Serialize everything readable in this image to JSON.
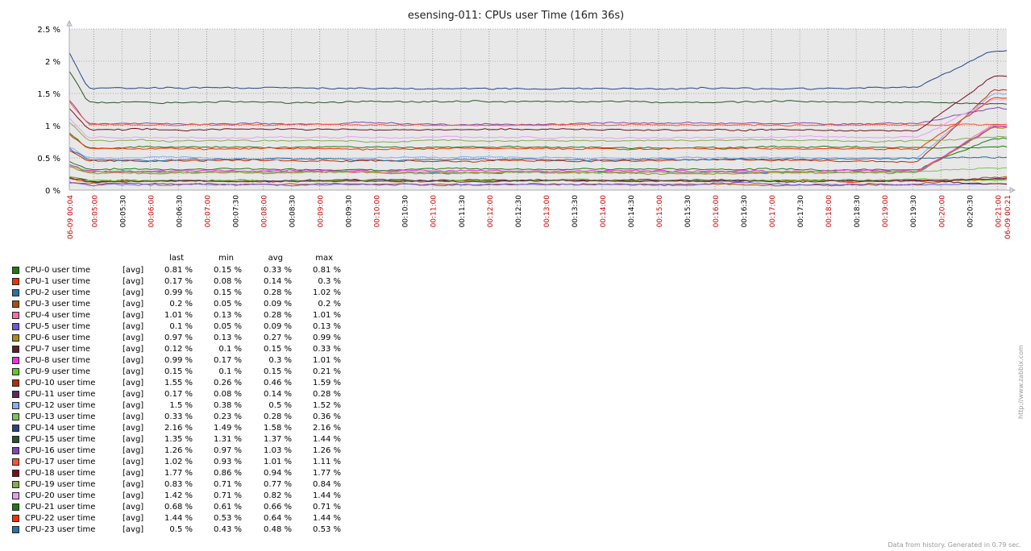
{
  "chart_data": {
    "type": "line",
    "title": "esensing-011: CPUs user Time (16m 36s)",
    "y_unit": "%",
    "ylim": [
      0,
      2.5
    ],
    "y_ticks": [
      "0 %",
      "0.5 %",
      "1 %",
      "1.5 %",
      "2 %",
      "2.5 %"
    ],
    "x_ticks": [
      {
        "label": "06-09 00:04",
        "major": true
      },
      {
        "label": "00:05:00",
        "major": true
      },
      {
        "label": "00:05:30",
        "major": false
      },
      {
        "label": "00:06:00",
        "major": true
      },
      {
        "label": "00:06:30",
        "major": false
      },
      {
        "label": "00:07:00",
        "major": true
      },
      {
        "label": "00:07:30",
        "major": false
      },
      {
        "label": "00:08:00",
        "major": true
      },
      {
        "label": "00:08:30",
        "major": false
      },
      {
        "label": "00:09:00",
        "major": true
      },
      {
        "label": "00:09:30",
        "major": false
      },
      {
        "label": "00:10:00",
        "major": true
      },
      {
        "label": "00:10:30",
        "major": false
      },
      {
        "label": "00:11:00",
        "major": true
      },
      {
        "label": "00:11:30",
        "major": false
      },
      {
        "label": "00:12:00",
        "major": true
      },
      {
        "label": "00:12:30",
        "major": false
      },
      {
        "label": "00:13:00",
        "major": true
      },
      {
        "label": "00:13:30",
        "major": false
      },
      {
        "label": "00:14:00",
        "major": true
      },
      {
        "label": "00:14:30",
        "major": false
      },
      {
        "label": "00:15:00",
        "major": true
      },
      {
        "label": "00:15:30",
        "major": false
      },
      {
        "label": "00:16:00",
        "major": true
      },
      {
        "label": "00:16:30",
        "major": false
      },
      {
        "label": "00:17:00",
        "major": true
      },
      {
        "label": "00:17:30",
        "major": false
      },
      {
        "label": "00:18:00",
        "major": true
      },
      {
        "label": "00:18:30",
        "major": false
      },
      {
        "label": "00:19:00",
        "major": true
      },
      {
        "label": "00:19:30",
        "major": false
      },
      {
        "label": "00:20:00",
        "major": true
      },
      {
        "label": "00:20:30",
        "major": false
      },
      {
        "label": "00:21:00",
        "major": true
      },
      {
        "label": "06-09 00:21",
        "major": true
      }
    ],
    "legend_headers": {
      "last": "last",
      "min": "min",
      "avg": "avg",
      "max": "max"
    },
    "series": [
      {
        "name": "CPU-0 user time",
        "func": "[avg]",
        "color": "#1A7C11",
        "last": "0.81 %",
        "min": "0.15 %",
        "avg": "0.33 %",
        "max": "0.81 %",
        "lastv": 0.81,
        "minv": 0.15,
        "avgv": 0.33
      },
      {
        "name": "CPU-1 user time",
        "func": "[avg]",
        "color": "#F63100",
        "last": "0.17 %",
        "min": "0.08 %",
        "avg": "0.14 %",
        "max": "0.3 %",
        "lastv": 0.17,
        "minv": 0.08,
        "avgv": 0.14
      },
      {
        "name": "CPU-2 user time",
        "func": "[avg]",
        "color": "#2774A4",
        "last": "0.99 %",
        "min": "0.15 %",
        "avg": "0.28 %",
        "max": "1.02 %",
        "lastv": 0.99,
        "minv": 0.15,
        "avgv": 0.28
      },
      {
        "name": "CPU-3 user time",
        "func": "[avg]",
        "color": "#A54F10",
        "last": "0.2 %",
        "min": "0.05 %",
        "avg": "0.09 %",
        "max": "0.2 %",
        "lastv": 0.2,
        "minv": 0.05,
        "avgv": 0.09
      },
      {
        "name": "CPU-4 user time",
        "func": "[avg]",
        "color": "#FC6EA3",
        "last": "1.01 %",
        "min": "0.13 %",
        "avg": "0.28 %",
        "max": "1.01 %",
        "lastv": 1.01,
        "minv": 0.13,
        "avgv": 0.28
      },
      {
        "name": "CPU-5 user time",
        "func": "[avg]",
        "color": "#6C59DC",
        "last": "0.1 %",
        "min": "0.05 %",
        "avg": "0.09 %",
        "max": "0.13 %",
        "lastv": 0.1,
        "minv": 0.05,
        "avgv": 0.09
      },
      {
        "name": "CPU-6 user time",
        "func": "[avg]",
        "color": "#AC8C14",
        "last": "0.97 %",
        "min": "0.13 %",
        "avg": "0.27 %",
        "max": "0.99 %",
        "lastv": 0.97,
        "minv": 0.13,
        "avgv": 0.27
      },
      {
        "name": "CPU-7 user time",
        "func": "[avg]",
        "color": "#611F27",
        "last": "0.12 %",
        "min": "0.1 %",
        "avg": "0.15 %",
        "max": "0.33 %",
        "lastv": 0.12,
        "minv": 0.1,
        "avgv": 0.15
      },
      {
        "name": "CPU-8 user time",
        "func": "[avg]",
        "color": "#F230E0",
        "last": "0.99 %",
        "min": "0.17 %",
        "avg": "0.3 %",
        "max": "1.01 %",
        "lastv": 0.99,
        "minv": 0.17,
        "avgv": 0.3
      },
      {
        "name": "CPU-9 user time",
        "func": "[avg]",
        "color": "#5CCD18",
        "last": "0.15 %",
        "min": "0.1 %",
        "avg": "0.15 %",
        "max": "0.21 %",
        "lastv": 0.15,
        "minv": 0.1,
        "avgv": 0.15
      },
      {
        "name": "CPU-10 user time",
        "func": "[avg]",
        "color": "#BB2A02",
        "last": "1.55 %",
        "min": "0.26 %",
        "avg": "0.46 %",
        "max": "1.59 %",
        "lastv": 1.55,
        "minv": 0.26,
        "avgv": 0.46
      },
      {
        "name": "CPU-11 user time",
        "func": "[avg]",
        "color": "#5A2B57",
        "last": "0.17 %",
        "min": "0.08 %",
        "avg": "0.14 %",
        "max": "0.28 %",
        "lastv": 0.17,
        "minv": 0.08,
        "avgv": 0.14
      },
      {
        "name": "CPU-12 user time",
        "func": "[avg]",
        "color": "#89ABF8",
        "last": "1.5 %",
        "min": "0.38 %",
        "avg": "0.5 %",
        "max": "1.52 %",
        "lastv": 1.5,
        "minv": 0.38,
        "avgv": 0.5
      },
      {
        "name": "CPU-13 user time",
        "func": "[avg]",
        "color": "#7EC25C",
        "last": "0.33 %",
        "min": "0.23 %",
        "avg": "0.28 %",
        "max": "0.36 %",
        "lastv": 0.33,
        "minv": 0.23,
        "avgv": 0.28
      },
      {
        "name": "CPU-14 user time",
        "func": "[avg]",
        "color": "#274482",
        "last": "2.16 %",
        "min": "1.49 %",
        "avg": "1.58 %",
        "max": "2.16 %",
        "lastv": 2.16,
        "minv": 1.49,
        "avgv": 1.58
      },
      {
        "name": "CPU-15 user time",
        "func": "[avg]",
        "color": "#2B5429",
        "last": "1.35 %",
        "min": "1.31 %",
        "avg": "1.37 %",
        "max": "1.44 %",
        "lastv": 1.35,
        "minv": 1.31,
        "avgv": 1.37
      },
      {
        "name": "CPU-16 user time",
        "func": "[avg]",
        "color": "#8048B4",
        "last": "1.26 %",
        "min": "0.97 %",
        "avg": "1.03 %",
        "max": "1.26 %",
        "lastv": 1.26,
        "minv": 0.97,
        "avgv": 1.03
      },
      {
        "name": "CPU-17 user time",
        "func": "[avg]",
        "color": "#FD5434",
        "last": "1.02 %",
        "min": "0.93 %",
        "avg": "1.01 %",
        "max": "1.11 %",
        "lastv": 1.02,
        "minv": 0.93,
        "avgv": 1.01
      },
      {
        "name": "CPU-18 user time",
        "func": "[avg]",
        "color": "#790E1F",
        "last": "1.77 %",
        "min": "0.86 %",
        "avg": "0.94 %",
        "max": "1.77 %",
        "lastv": 1.77,
        "minv": 0.86,
        "avgv": 0.94
      },
      {
        "name": "CPU-19 user time",
        "func": "[avg]",
        "color": "#87AC4D",
        "last": "0.83 %",
        "min": "0.71 %",
        "avg": "0.77 %",
        "max": "0.84 %",
        "lastv": 0.83,
        "minv": 0.71,
        "avgv": 0.77
      },
      {
        "name": "CPU-20 user time",
        "func": "[avg]",
        "color": "#E89DF4",
        "last": "1.42 %",
        "min": "0.71 %",
        "avg": "0.82 %",
        "max": "1.44 %",
        "lastv": 1.42,
        "minv": 0.71,
        "avgv": 0.82
      },
      {
        "name": "CPU-21 user time",
        "func": "[avg]",
        "color": "#1A7C11",
        "last": "0.68 %",
        "min": "0.61 %",
        "avg": "0.66 %",
        "max": "0.71 %",
        "lastv": 0.68,
        "minv": 0.61,
        "avgv": 0.66
      },
      {
        "name": "CPU-22 user time",
        "func": "[avg]",
        "color": "#F63100",
        "last": "1.44 %",
        "min": "0.53 %",
        "avg": "0.64 %",
        "max": "1.44 %",
        "lastv": 1.44,
        "minv": 0.53,
        "avgv": 0.64
      },
      {
        "name": "CPU-23 user time",
        "func": "[avg]",
        "color": "#2774A4",
        "last": "0.5 %",
        "min": "0.43 %",
        "avg": "0.48 %",
        "max": "0.53 %",
        "lastv": 0.5,
        "minv": 0.43,
        "avgv": 0.48
      }
    ]
  },
  "colors": {
    "plot_background": "#e8e8e8",
    "grid": "#aaaaaa",
    "major_tick_label": "#cc0000",
    "minor_tick_label": "#000000"
  },
  "watermark": "http://www.zabbix.com",
  "footer": "Data from history. Generated in 0.79 sec."
}
